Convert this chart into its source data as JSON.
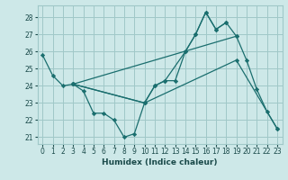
{
  "xlabel": "Humidex (Indice chaleur)",
  "background_color": "#cde8e8",
  "grid_color": "#a0c8c8",
  "line_color": "#1a6e6e",
  "xticks": [
    0,
    1,
    2,
    3,
    4,
    5,
    6,
    7,
    8,
    9,
    10,
    11,
    12,
    13,
    14,
    15,
    16,
    17,
    18,
    19,
    20,
    21,
    22,
    23
  ],
  "yticks": [
    21,
    22,
    23,
    24,
    25,
    26,
    27,
    28
  ],
  "xlim": [
    -0.5,
    23.5
  ],
  "ylim": [
    20.6,
    28.7
  ],
  "line1_x": [
    0,
    1,
    2,
    3,
    10,
    11,
    12,
    13,
    14,
    15,
    16,
    17,
    18,
    19,
    20,
    21,
    22,
    23
  ],
  "line1_y": [
    25.8,
    24.6,
    24.0,
    24.1,
    23.0,
    24.0,
    24.3,
    24.3,
    26.0,
    27.0,
    28.3,
    27.3,
    27.7,
    26.9,
    25.5,
    23.8,
    22.5,
    21.5
  ],
  "line2_x": [
    3,
    4,
    5,
    6,
    7,
    8,
    9,
    10,
    11,
    12,
    14,
    15,
    16,
    17,
    18
  ],
  "line2_y": [
    24.1,
    23.7,
    22.4,
    22.4,
    22.0,
    21.0,
    21.2,
    23.0,
    24.0,
    24.3,
    26.0,
    27.0,
    28.3,
    27.3,
    27.7
  ],
  "line3_x": [
    3,
    19
  ],
  "line3_y": [
    24.1,
    26.9
  ],
  "line4_x": [
    3,
    10,
    19,
    23
  ],
  "line4_y": [
    24.1,
    23.0,
    25.5,
    21.5
  ]
}
